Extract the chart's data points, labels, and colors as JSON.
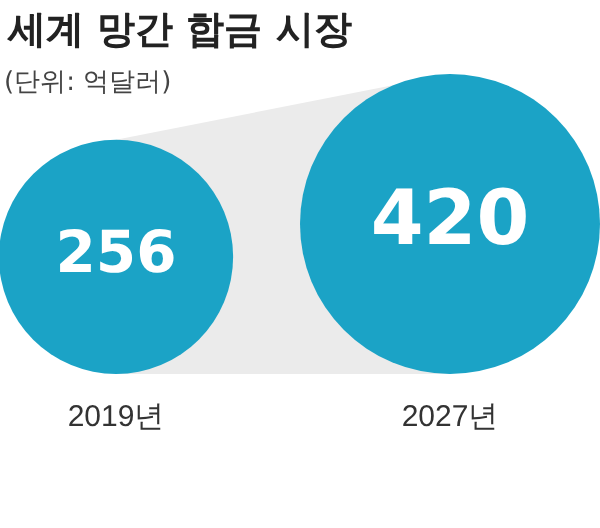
{
  "chart_data": {
    "type": "other",
    "title": "세계 망간 합금 시장",
    "subtitle": "(단위: 억달러)",
    "categories": [
      "2019년",
      "2027년"
    ],
    "values": [
      256,
      420
    ],
    "color": "#1ba3c6",
    "data_labels": true
  }
}
